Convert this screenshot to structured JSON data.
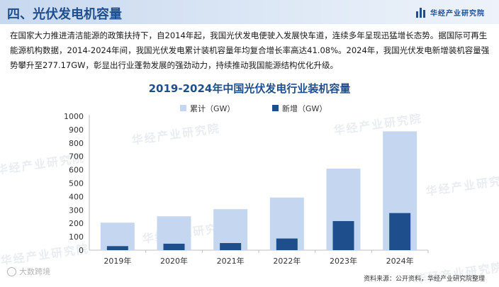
{
  "header": {
    "title": "四、光伏发电机容量",
    "brand": "华经产业研究院",
    "brand_icon": "bar-logo-icon"
  },
  "intro_text": "在国家大力推进清洁能源的政策扶持下，自2014年起，我国光伏发电便驶入发展快车道，连续多年呈现迅猛增长态势。据国际可再生能源机构数据，2014-2024年间，我国光伏发电累计装机容量年均复合增长率高达41.08%。2024年，我国光伏发电新增装机容量强势攀升至277.17GW，彰显出行业蓬勃发展的强劲动力，持续推动我国能源结构优化升级。",
  "watermarks": [
    "华经产业研究院",
    "华经产业研究院",
    "华经产业研究院",
    "华经产业研究院",
    "华经产业研究院",
    "华经产业研究院",
    "华经产业研究院"
  ],
  "chart_data": {
    "type": "bar",
    "title": "2019-2024年中国光伏发电行业装机容量",
    "categories": [
      "2019年",
      "2020年",
      "2021年",
      "2022年",
      "2023年",
      "2024年"
    ],
    "series": [
      {
        "name": "累计（GW）",
        "values": [
          205,
          253,
          306,
          393,
          609,
          887
        ],
        "color": "#c5d7f0"
      },
      {
        "name": "新增（GW）",
        "values": [
          30,
          48,
          53,
          87,
          217,
          277
        ],
        "color": "#1f4e8c"
      }
    ],
    "ylim": [
      0,
      1000
    ],
    "yticks": [
      "0",
      "100",
      "200",
      "300",
      "400",
      "500",
      "600",
      "700",
      "800",
      "900",
      "1000"
    ],
    "legend_position": "top",
    "grid": false
  },
  "footer": {
    "logo_text": "大数跨境",
    "source": "资料来源：公开资料，华经产业研究院整理"
  }
}
